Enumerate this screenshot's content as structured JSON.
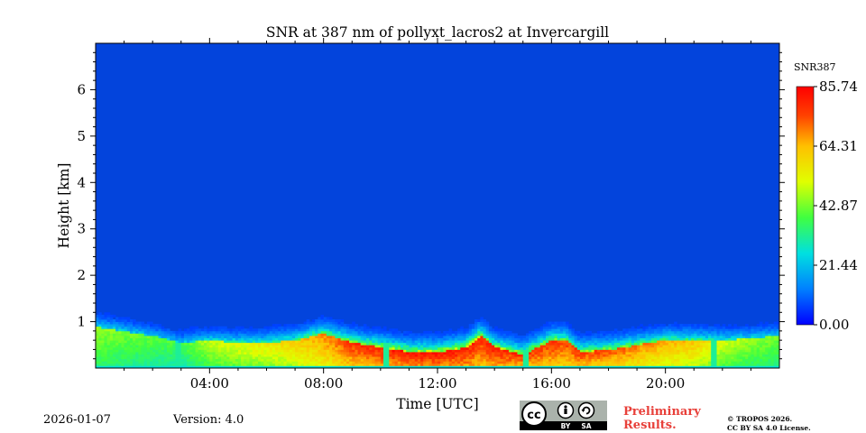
{
  "chart_data": {
    "type": "heatmap",
    "title": "SNR at 387 nm of pollyxt_lacros2 at Invercargill",
    "xlabel": "Time [UTC]",
    "ylabel": "Height [km]",
    "xlim_hours": [
      0,
      24
    ],
    "ylim_km": [
      0,
      7
    ],
    "x_ticks": [
      {
        "hour": 4,
        "label": "04:00"
      },
      {
        "hour": 8,
        "label": "08:00"
      },
      {
        "hour": 12,
        "label": "12:00"
      },
      {
        "hour": 16,
        "label": "16:00"
      },
      {
        "hour": 20,
        "label": "20:00"
      }
    ],
    "y_ticks": [
      {
        "km": 1,
        "label": "1"
      },
      {
        "km": 2,
        "label": "2"
      },
      {
        "km": 3,
        "label": "3"
      },
      {
        "km": 4,
        "label": "4"
      },
      {
        "km": 5,
        "label": "5"
      },
      {
        "km": 6,
        "label": "6"
      }
    ],
    "colorbar": {
      "label": "SNR387",
      "min": 0.0,
      "max": 85.74,
      "tick_labels": [
        "0.00",
        "21.44",
        "42.87",
        "64.31",
        "85.74"
      ],
      "colormap": [
        "#0000ff",
        "#0080ff",
        "#00e0e0",
        "#40ff40",
        "#e0ff00",
        "#ffc000",
        "#ff4000",
        "#ff0000"
      ]
    },
    "background_color": "#0344dc",
    "boundary_layer_profile": [
      {
        "hour": 0.0,
        "top_km": 0.9,
        "peak": 45
      },
      {
        "hour": 1.0,
        "top_km": 0.8,
        "peak": 42
      },
      {
        "hour": 2.0,
        "top_km": 0.7,
        "peak": 40
      },
      {
        "hour": 3.0,
        "top_km": 0.55,
        "peak": 38
      },
      {
        "hour": 4.0,
        "top_km": 0.6,
        "peak": 48
      },
      {
        "hour": 5.0,
        "top_km": 0.55,
        "peak": 52
      },
      {
        "hour": 6.0,
        "top_km": 0.55,
        "peak": 55
      },
      {
        "hour": 7.0,
        "top_km": 0.6,
        "peak": 60
      },
      {
        "hour": 8.0,
        "top_km": 0.75,
        "peak": 68
      },
      {
        "hour": 9.0,
        "top_km": 0.55,
        "peak": 78
      },
      {
        "hour": 10.0,
        "top_km": 0.45,
        "peak": 82
      },
      {
        "hour": 11.0,
        "top_km": 0.35,
        "peak": 85
      },
      {
        "hour": 12.0,
        "top_km": 0.35,
        "peak": 85
      },
      {
        "hour": 13.0,
        "top_km": 0.45,
        "peak": 84
      },
      {
        "hour": 13.5,
        "top_km": 0.7,
        "peak": 80
      },
      {
        "hour": 14.0,
        "top_km": 0.45,
        "peak": 82
      },
      {
        "hour": 15.0,
        "top_km": 0.3,
        "peak": 80
      },
      {
        "hour": 16.0,
        "top_km": 0.6,
        "peak": 78
      },
      {
        "hour": 16.5,
        "top_km": 0.6,
        "peak": 76
      },
      {
        "hour": 17.0,
        "top_km": 0.35,
        "peak": 78
      },
      {
        "hour": 18.0,
        "top_km": 0.4,
        "peak": 75
      },
      {
        "hour": 19.0,
        "top_km": 0.5,
        "peak": 70
      },
      {
        "hour": 20.0,
        "top_km": 0.6,
        "peak": 65
      },
      {
        "hour": 21.0,
        "top_km": 0.6,
        "peak": 62
      },
      {
        "hour": 22.0,
        "top_km": 0.6,
        "peak": 50
      },
      {
        "hour": 23.0,
        "top_km": 0.65,
        "peak": 45
      },
      {
        "hour": 24.0,
        "top_km": 0.7,
        "peak": 42
      }
    ],
    "data_gaps_hours": [
      2.9,
      10.2,
      15.1,
      21.7
    ]
  },
  "footer": {
    "date": "2026-01-07",
    "version": "Version: 4.0",
    "preliminary_line1": "Preliminary",
    "preliminary_line2": "Results.",
    "copyright_line1": "© TROPOS 2026.",
    "copyright_line2": "CC BY SA 4.0 License.",
    "license_badge": {
      "cc": "cc",
      "by": "BY",
      "sa": "SA"
    }
  }
}
